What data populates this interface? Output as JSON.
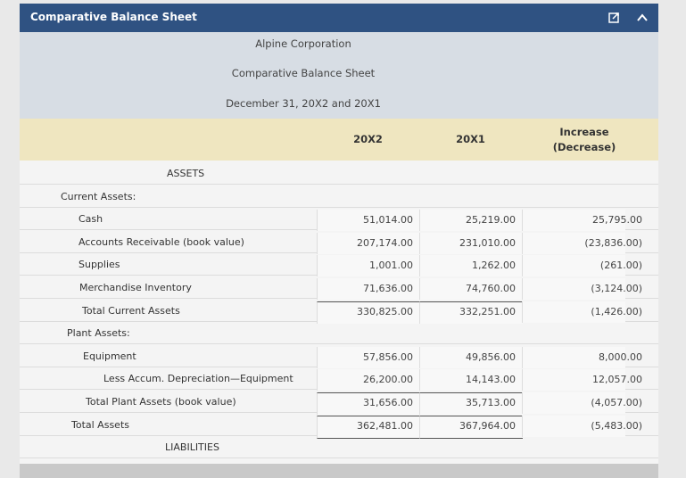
{
  "header": {
    "title": "Comparative Balance Sheet"
  },
  "document": {
    "company": "Alpine Corporation",
    "statement": "Comparative Balance Sheet",
    "date": "December 31, 20X2 and 20X1"
  },
  "table": {
    "columns": [
      "20X2",
      "20X1",
      "Increase (Decrease)"
    ],
    "rows": [
      {
        "label": "ASSETS"
      },
      {
        "label": "Current Assets:"
      },
      {
        "label": "Cash",
        "values": [
          "51,014.00",
          "25,219.00",
          "25,795.00"
        ]
      },
      {
        "label": "Accounts Receivable (book value)",
        "values": [
          "207,174.00",
          "231,010.00",
          "(23,836.00)"
        ]
      },
      {
        "label": "Supplies",
        "values": [
          "1,001.00",
          "1,262.00",
          "(261.00)"
        ]
      },
      {
        "label": "Merchandise Inventory",
        "values": [
          "71,636.00",
          "74,760.00",
          "(3,124.00)"
        ]
      },
      {
        "label": "Total Current Assets",
        "values": [
          "330,825.00",
          "332,251.00",
          "(1,426.00)"
        ]
      },
      {
        "label": "Plant Assets:"
      },
      {
        "label": "Equipment",
        "values": [
          "57,856.00",
          "49,856.00",
          "8,000.00"
        ]
      },
      {
        "label": "Less Accum. Depreciation—Equipment",
        "values": [
          "26,200.00",
          "14,143.00",
          "12,057.00"
        ]
      },
      {
        "label": "Total Plant Assets (book value)",
        "values": [
          "31,656.00",
          "35,713.00",
          "(4,057.00)"
        ]
      },
      {
        "label": "Total Assets",
        "values": [
          "362,481.00",
          "367,964.00",
          "(5,483.00)"
        ]
      },
      {
        "label": "LIABILITIES"
      }
    ]
  }
}
